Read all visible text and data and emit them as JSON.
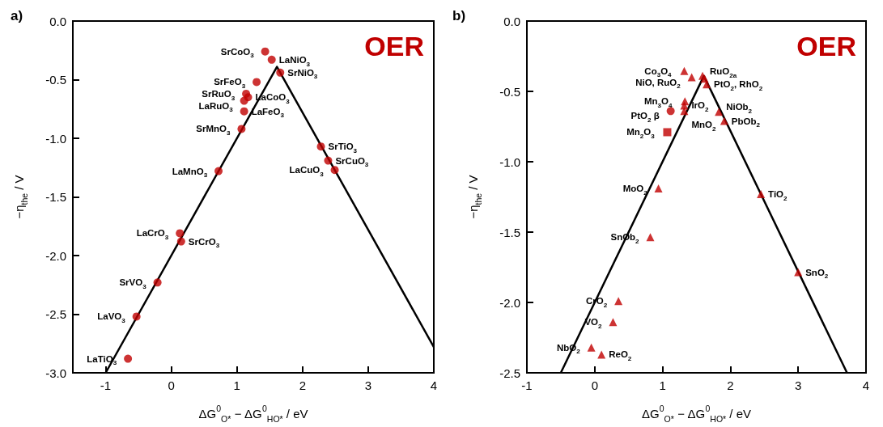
{
  "chart_data": [
    {
      "type": "scatter",
      "title": "a)",
      "xlabel": "ΔG$^{0}$$_{O*}$ − ΔG$^{0}$$_{HO*}$ / eV",
      "ylabel": "−η$_{the}$ / V",
      "xlim": [
        -1.5,
        4
      ],
      "xticks": [
        -1,
        0,
        1,
        2,
        3,
        4
      ],
      "ylim": [
        -3,
        0
      ],
      "yticks": [
        {
          "value": -3,
          "label": "-3.0"
        },
        -2.5,
        {
          "value": -2,
          "label": "-2.0"
        },
        -1.5,
        {
          "value": -1,
          "label": "-1.0"
        },
        -0.5,
        {
          "value": 0,
          "label": "0.0"
        }
      ],
      "series": [
        {
          "type": "line",
          "color": "#000000",
          "marker": "none",
          "line_style": "solid",
          "x": [
            -1,
            1.61,
            4
          ],
          "values": [
            -3,
            -0.39,
            -2.78
          ]
        },
        {
          "color": "#c00000",
          "marker": "circle",
          "x": [
            1.43,
            1.53,
            1.66,
            1.3,
            1.14,
            1.17,
            1.11,
            1.11,
            1.07,
            0.72,
            2.28,
            2.39,
            2.49,
            0.13,
            0.15,
            -0.21,
            -0.53,
            -0.66
          ],
          "values": [
            -0.26,
            -0.33,
            -0.44,
            -0.52,
            -0.62,
            -0.65,
            -0.68,
            -0.77,
            -0.92,
            -1.28,
            -1.07,
            -1.19,
            -1.27,
            -1.81,
            -1.88,
            -2.23,
            -2.52,
            -2.88
          ]
        }
      ],
      "annotations": [
        "OER",
        {
          "text": "SrCoO$_{3}$",
          "x": 1.43,
          "y": -0.26
        },
        {
          "text": "LaNiO$_{3}$",
          "x": 1.53,
          "y": -0.33
        },
        {
          "text": "SrNiO$_{3}$",
          "x": 1.66,
          "y": -0.44
        },
        {
          "text": "LaCoO$_{3}$",
          "x": 1.17,
          "y": -0.65
        },
        {
          "text": "SrFeO$_{3}$",
          "x": 1.3,
          "y": -0.52
        },
        {
          "text": "SrRuO$_{3}$",
          "x": 1.14,
          "y": -0.62
        },
        {
          "text": "LaRuO$_{3}$",
          "x": 1.11,
          "y": -0.68
        },
        {
          "text": "LaFeO$_{3}$",
          "x": 1.11,
          "y": -0.77
        },
        {
          "text": "SrMnO$_{3}$",
          "x": 1.07,
          "y": -0.92
        },
        {
          "text": "LaMnO$_{3}$",
          "x": 0.72,
          "y": -1.28
        },
        {
          "text": "SrTiO$_{3}$",
          "x": 2.28,
          "y": -1.07
        },
        {
          "text": "SrCuO$_{3}$",
          "x": 2.39,
          "y": -1.19
        },
        {
          "text": "LaCuO$_{3}$",
          "x": 2.49,
          "y": -1.27
        },
        {
          "text": "LaCrO$_{3}$",
          "x": 0.13,
          "y": -1.81
        },
        {
          "text": "SrCrO$_{3}$",
          "x": 0.15,
          "y": -1.88
        },
        {
          "text": "SrVO$_{3}$",
          "x": -0.21,
          "y": -2.23
        },
        {
          "text": "LaVO$_{3}$",
          "x": -0.53,
          "y": -2.52
        },
        {
          "text": "LaTiO$_{3}$",
          "x": -0.66,
          "y": -2.88
        }
      ]
    },
    {
      "type": "scatter",
      "title": "b)",
      "xlabel": "ΔG$^{0}$$_{O*}$ − ΔG$^{0}$$_{HO*}$ / eV",
      "ylabel": "−η$_{the}$ / V",
      "xlim": [
        -1,
        4
      ],
      "xticks": [
        -1,
        0,
        1,
        2,
        3,
        4
      ],
      "ylim": [
        -2.5,
        0
      ],
      "yticks": [
        -2.5,
        {
          "value": -2,
          "label": "-2.0"
        },
        -1.5,
        {
          "value": -1,
          "label": "-1.0"
        },
        -0.5,
        {
          "value": 0,
          "label": "0.0"
        }
      ],
      "series": [
        {
          "type": "line",
          "color": "#000000",
          "marker": "none",
          "line_style": "solid",
          "x": [
            -0.5,
            1.61,
            3.72
          ],
          "values": [
            -2.5,
            -0.39,
            -2.5
          ]
        },
        {
          "color": "#c00000",
          "marker": "triangle",
          "x": [
            1.32,
            1.43,
            1.59,
            1.62,
            1.65,
            1.33,
            1.32,
            1.32,
            1.83,
            1.91,
            0.94,
            2.45,
            0.82,
            3.0,
            0.35,
            0.27,
            -0.05,
            0.1
          ],
          "values": [
            -0.355,
            -0.4,
            -0.39,
            -0.41,
            -0.45,
            -0.57,
            -0.6,
            -0.64,
            -0.645,
            -0.71,
            -1.19,
            -1.23,
            -1.536,
            -1.785,
            -1.99,
            -2.14,
            -2.32,
            -2.37
          ]
        },
        {
          "color": "#c00000",
          "marker": "circle",
          "x": [
            1.12
          ],
          "values": [
            -0.64
          ]
        },
        {
          "color": "#c00000",
          "marker": "square",
          "x": [
            1.07
          ],
          "values": [
            -0.79
          ]
        }
      ],
      "annotations": [
        "OER",
        {
          "text": "Co$_{3}$O$_{4}$",
          "x": 1.32,
          "y": -0.355
        },
        {
          "text": "NiO, RuO$_{2}$",
          "x": 1.43,
          "y": -0.4
        },
        {
          "text": "RuO$_{2a}$",
          "x": 1.59,
          "y": -0.39
        },
        {
          "text": "PtO$_{2}$, RhO$_{2}$",
          "x": 1.65,
          "y": -0.45
        },
        {
          "text": "Mn$_{3}$O$_{4}$",
          "x": 1.33,
          "y": -0.57
        },
        {
          "text": "IrO$_{2}$",
          "x": 1.32,
          "y": -0.6
        },
        {
          "text": "MnO$_{2}$",
          "x": 1.32,
          "y": -0.64
        },
        {
          "text": "PtO$_{2}$ β",
          "x": 1.12,
          "y": -0.64
        },
        {
          "text": "Mn$_{2}$O$_{3}$",
          "x": 1.07,
          "y": -0.79
        },
        {
          "text": "NiOb$_{2}$",
          "x": 1.83,
          "y": -0.645
        },
        {
          "text": "PbOb$_{2}$",
          "x": 1.91,
          "y": -0.71
        },
        {
          "text": "MoO$_{2}$",
          "x": 0.94,
          "y": -1.19
        },
        {
          "text": "TiO$_{2}$",
          "x": 2.45,
          "y": -1.23
        },
        {
          "text": "SnOb$_{2}$",
          "x": 0.82,
          "y": -1.536
        },
        {
          "text": "SnO$_{2}$",
          "x": 3.0,
          "y": -1.785
        },
        {
          "text": "CrO$_{2}$",
          "x": 0.35,
          "y": -1.99
        },
        {
          "text": "VO$_{2}$",
          "x": 0.27,
          "y": -2.14
        },
        {
          "text": "NbO$_{2}$",
          "x": -0.05,
          "y": -2.32
        },
        {
          "text": "ReO$_{2}$",
          "x": 0.1,
          "y": -2.37
        }
      ]
    }
  ]
}
